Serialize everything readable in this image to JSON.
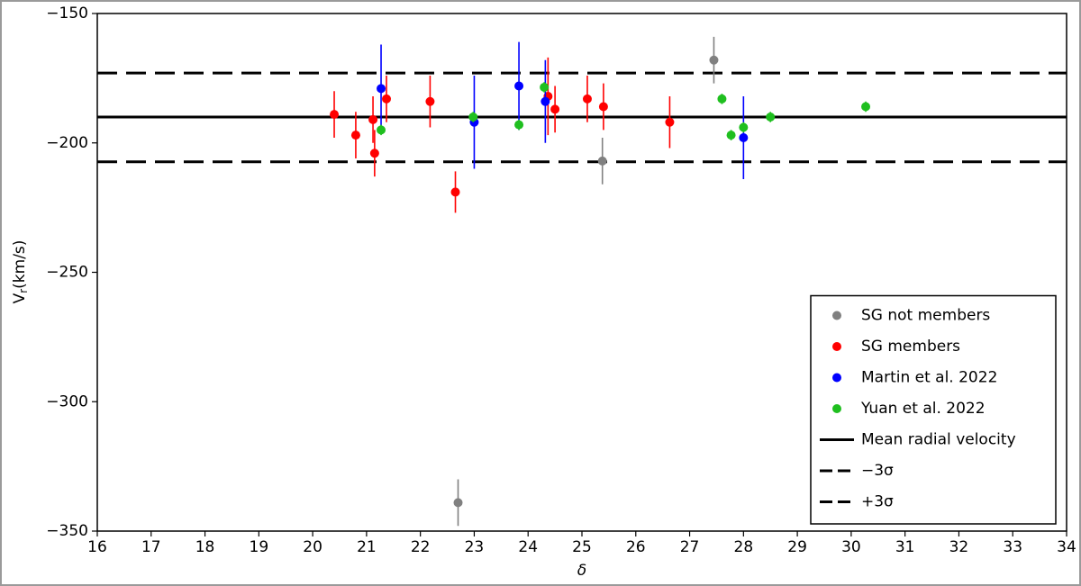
{
  "chart_data": {
    "type": "scatter",
    "xlabel": "δ",
    "ylabel": {
      "main": "V",
      "sub": "r",
      "unit": "(km/s)"
    },
    "xlim": [
      16,
      34
    ],
    "ylim": [
      -350,
      -150
    ],
    "xticks": [
      16,
      17,
      18,
      19,
      20,
      21,
      22,
      23,
      24,
      25,
      26,
      27,
      28,
      29,
      30,
      31,
      32,
      33,
      34
    ],
    "yticks": [
      {
        "value": -350,
        "label": "−350"
      },
      {
        "value": -300,
        "label": "−300"
      },
      {
        "value": -250,
        "label": "−250"
      },
      {
        "value": -200,
        "label": "−200"
      },
      {
        "value": -150,
        "label": "−150"
      }
    ],
    "legend": "lower right",
    "series": [
      {
        "name": "SG not members",
        "color": "#808080",
        "x": [
          27.45,
          25.38,
          22.7
        ],
        "values": [
          -168,
          -207,
          -339
        ],
        "errors": [
          9,
          9,
          9
        ]
      },
      {
        "name": "SG members",
        "color": "#ff0000",
        "x": [
          20.4,
          20.8,
          21.12,
          21.15,
          21.37,
          22.18,
          22.65,
          24.37,
          24.5,
          25.1,
          25.4,
          26.63
        ],
        "values": [
          -189,
          -197,
          -191,
          -204,
          -183,
          -184,
          -219,
          -182,
          -187,
          -183,
          -186,
          -192
        ],
        "errors": [
          9,
          9,
          9,
          9,
          9,
          10,
          8,
          15,
          9,
          9,
          9,
          10
        ]
      },
      {
        "name": "Martin et al. 2022",
        "color": "#0000ff",
        "x": [
          21.27,
          23.0,
          23.83,
          24.32,
          28.0
        ],
        "values": [
          -179,
          -192,
          -178,
          -184,
          -198
        ],
        "errors": [
          17,
          18,
          17,
          16,
          16
        ]
      },
      {
        "name": "Yuan et al. 2022",
        "color": "#1fbf1f",
        "x": [
          21.27,
          22.98,
          23.83,
          24.3,
          27.6,
          27.77,
          28.0,
          28.5,
          30.27
        ],
        "values": [
          -195,
          -190,
          -193,
          -178.5,
          -183,
          -197,
          -194,
          -190,
          -186
        ],
        "errors": [
          2,
          2,
          2,
          2,
          2,
          2,
          2,
          2,
          2
        ]
      }
    ],
    "lines": [
      {
        "name": "Mean radial velocity",
        "value": -190,
        "style": "solid"
      },
      {
        "name": "−3σ",
        "value": -207.3,
        "style": "dashed"
      },
      {
        "name": "+3σ",
        "value": -173,
        "style": "dashed"
      }
    ]
  }
}
